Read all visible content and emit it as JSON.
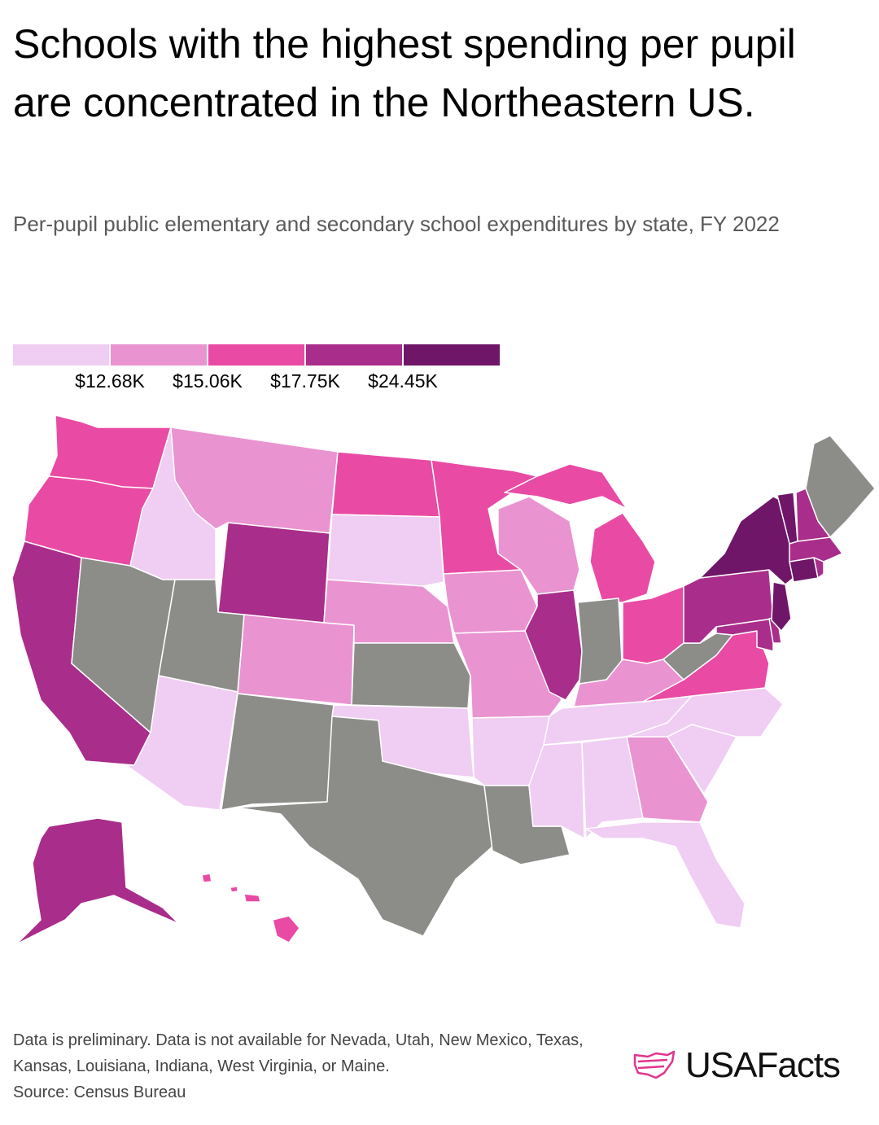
{
  "header": {
    "title": "Schools with the highest spending per pupil are concentrated in the Northeastern US.",
    "subtitle": "Per-pupil public elementary and secondary school expenditures by state, FY 2022"
  },
  "legend": {
    "colors": [
      "#f0cdf2",
      "#ea93d1",
      "#e94aa4",
      "#a92d8a",
      "#6f1668"
    ],
    "labels": [
      "$12.68K",
      "$15.06K",
      "$17.75K",
      "$24.45K"
    ]
  },
  "map_data": {
    "no_data_color": "#8c8c89",
    "states": {
      "WA": 3,
      "OR": 3,
      "CA": 4,
      "AK": 4,
      "HI": 3,
      "ID": 1,
      "MT": 2,
      "WY": 4,
      "NV": 0,
      "UT": 0,
      "AZ": 1,
      "CO": 2,
      "NM": 0,
      "ND": 3,
      "SD": 1,
      "NE": 2,
      "KS": 0,
      "OK": 1,
      "TX": 0,
      "MN": 3,
      "IA": 2,
      "MO": 2,
      "AR": 1,
      "LA": 0,
      "WI": 2,
      "IL": 4,
      "MI": 3,
      "IN": 0,
      "OH": 3,
      "KY": 2,
      "TN": 1,
      "MS": 1,
      "AL": 1,
      "GA": 2,
      "FL": 1,
      "SC": 1,
      "NC": 1,
      "VA": 3,
      "WV": 0,
      "PA": 4,
      "NY": 5,
      "NJ": 5,
      "DE": 4,
      "MD": 4,
      "CT": 5,
      "RI": 4,
      "MA": 4,
      "VT": 5,
      "NH": 4,
      "ME": 0
    }
  },
  "footer": {
    "note": "Data is preliminary. Data is not available for Nevada, Utah, New Mexico, Texas, Kansas, Louisiana, Indiana, West Virginia, or Maine.",
    "source": "Source: Census Bureau",
    "brand": "USAFacts"
  }
}
